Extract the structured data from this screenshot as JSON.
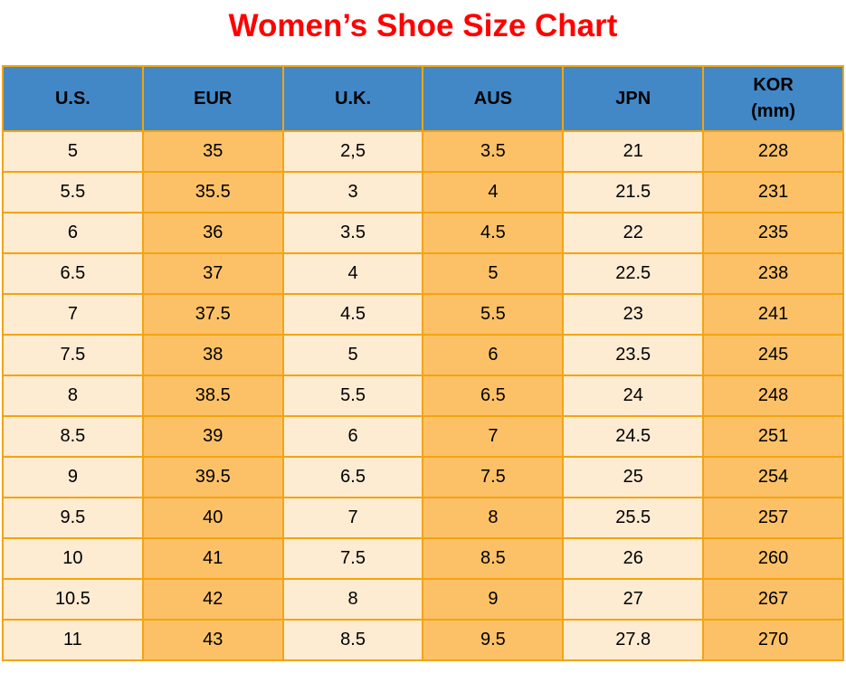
{
  "page": {
    "title": "Women’s Shoe Size Chart"
  },
  "colors": {
    "title": "#ff0000",
    "header_bg": "#4288c6",
    "cell_light": "#fdebd2",
    "cell_orange": "#fcc167",
    "border": "#f3a40f",
    "text": "#000000"
  },
  "table": {
    "headers": [
      {
        "label": "U.S."
      },
      {
        "label": "EUR"
      },
      {
        "label": "U.K."
      },
      {
        "label": "AUS"
      },
      {
        "label": "JPN"
      },
      {
        "label": "KOR\n(mm)"
      }
    ],
    "rows": [
      [
        "5",
        "35",
        "2,5",
        "3.5",
        "21",
        "228"
      ],
      [
        "5.5",
        "35.5",
        "3",
        "4",
        "21.5",
        "231"
      ],
      [
        "6",
        "36",
        "3.5",
        "4.5",
        "22",
        "235"
      ],
      [
        "6.5",
        "37",
        "4",
        "5",
        "22.5",
        "238"
      ],
      [
        "7",
        "37.5",
        "4.5",
        "5.5",
        "23",
        "241"
      ],
      [
        "7.5",
        "38",
        "5",
        "6",
        "23.5",
        "245"
      ],
      [
        "8",
        "38.5",
        "5.5",
        "6.5",
        "24",
        "248"
      ],
      [
        "8.5",
        "39",
        "6",
        "7",
        "24.5",
        "251"
      ],
      [
        "9",
        "39.5",
        "6.5",
        "7.5",
        "25",
        "254"
      ],
      [
        "9.5",
        "40",
        "7",
        "8",
        "25.5",
        "257"
      ],
      [
        "10",
        "41",
        "7.5",
        "8.5",
        "26",
        "260"
      ],
      [
        "10.5",
        "42",
        "8",
        "9",
        "27",
        "267"
      ],
      [
        "11",
        "43",
        "8.5",
        "9.5",
        "27.8",
        "270"
      ]
    ]
  },
  "chart_data": {
    "type": "table",
    "title": "Women’s Shoe Size Chart",
    "columns": [
      "U.S.",
      "EUR",
      "U.K.",
      "AUS",
      "JPN",
      "KOR (mm)"
    ],
    "rows": [
      [
        "5",
        "35",
        "2,5",
        "3.5",
        "21",
        "228"
      ],
      [
        "5.5",
        "35.5",
        "3",
        "4",
        "21.5",
        "231"
      ],
      [
        "6",
        "36",
        "3.5",
        "4.5",
        "22",
        "235"
      ],
      [
        "6.5",
        "37",
        "4",
        "5",
        "22.5",
        "238"
      ],
      [
        "7",
        "37.5",
        "4.5",
        "5.5",
        "23",
        "241"
      ],
      [
        "7.5",
        "38",
        "5",
        "6",
        "23.5",
        "245"
      ],
      [
        "8",
        "38.5",
        "5.5",
        "6.5",
        "24",
        "248"
      ],
      [
        "8.5",
        "39",
        "6",
        "7",
        "24.5",
        "251"
      ],
      [
        "9",
        "39.5",
        "6.5",
        "7.5",
        "25",
        "254"
      ],
      [
        "9.5",
        "40",
        "7",
        "8",
        "25.5",
        "257"
      ],
      [
        "10",
        "41",
        "7.5",
        "8.5",
        "26",
        "260"
      ],
      [
        "10.5",
        "42",
        "8",
        "9",
        "27",
        "267"
      ],
      [
        "11",
        "43",
        "8.5",
        "9.5",
        "27.8",
        "270"
      ]
    ],
    "layout": {
      "column_striping": [
        "light",
        "orange",
        "light",
        "orange",
        "light",
        "orange"
      ],
      "header_style": "blue-filled, bold black text",
      "grid": "on, orange borders"
    }
  }
}
